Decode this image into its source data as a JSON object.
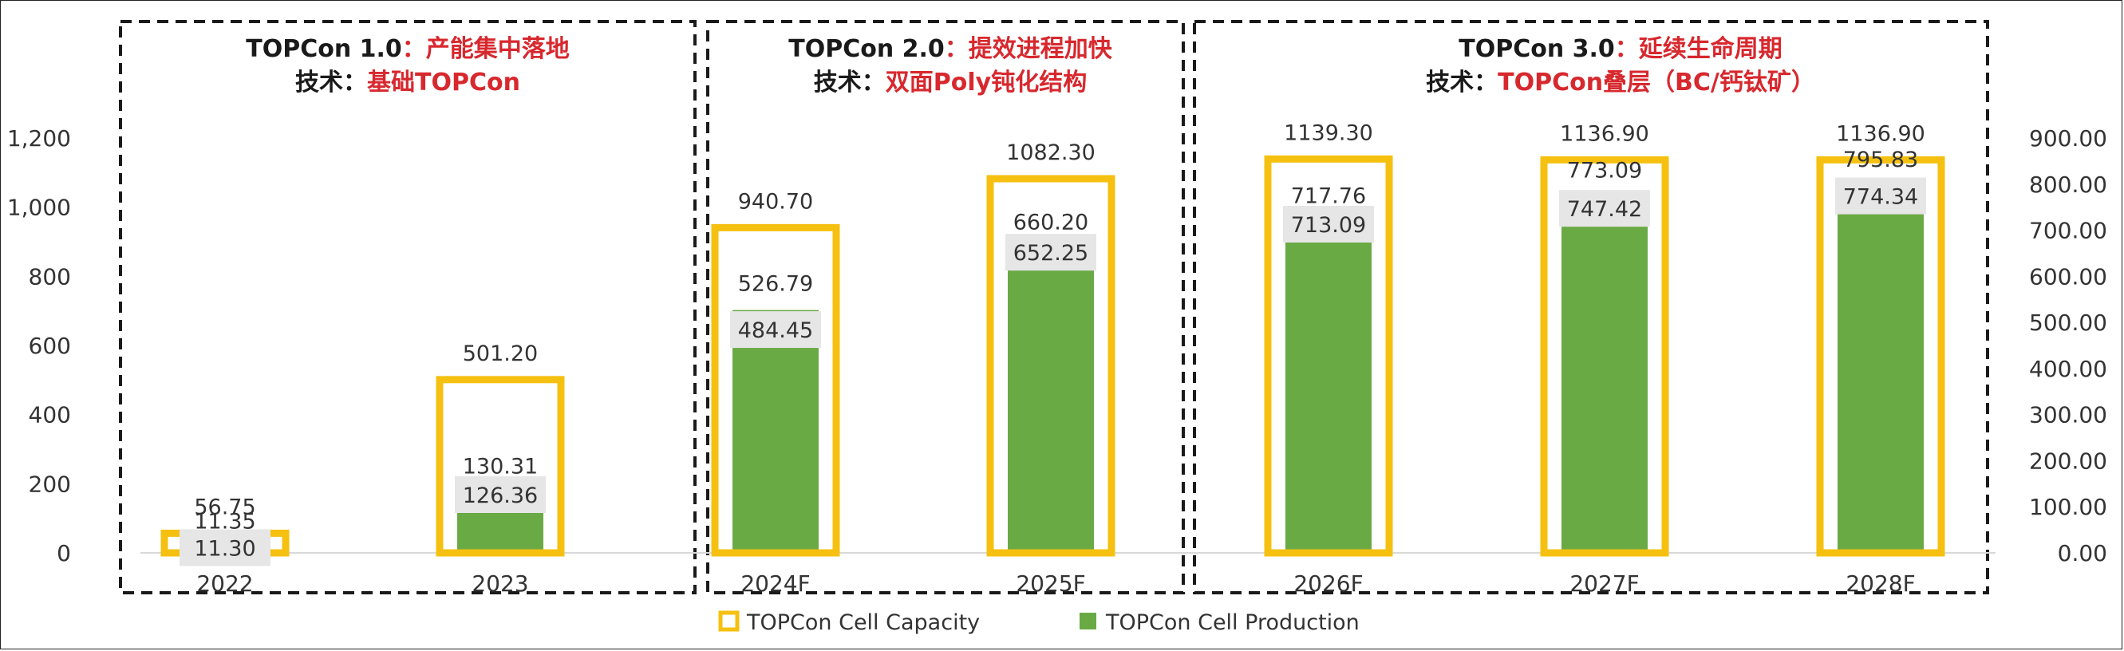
{
  "chart_data": {
    "type": "bar",
    "categories": [
      "2022",
      "2023",
      "2024F",
      "2025F",
      "2026F",
      "2027F",
      "2028F"
    ],
    "series": [
      {
        "name": "TOPCon Cell Capacity",
        "axis": "left",
        "color": "#f5c010",
        "style": "outline",
        "values": [
          56.75,
          501.2,
          940.7,
          1082.3,
          1139.3,
          1136.9,
          1136.9
        ],
        "labels": [
          "56.75",
          "501.20",
          "940.70",
          "1082.30",
          "1139.30",
          "1136.90",
          "1136.90"
        ]
      },
      {
        "name": "TOPCon Cell Production",
        "axis": "right",
        "color": "#6aaa45",
        "style": "filled",
        "values": [
          11.35,
          130.31,
          526.79,
          660.2,
          717.76,
          773.09,
          795.83
        ],
        "labels": [
          "11.35",
          "130.31",
          "526.79",
          "660.20",
          "717.76",
          "773.09",
          "795.83"
        ]
      },
      {
        "axis": "right",
        "style": "boxed-label",
        "values": [
          11.3,
          126.36,
          484.45,
          652.25,
          713.09,
          747.42,
          774.34
        ],
        "labels": [
          "11.30",
          "126.36",
          "484.45",
          "652.25",
          "713.09",
          "747.42",
          "774.34"
        ]
      }
    ],
    "y_left": {
      "ylim": [
        0,
        1200
      ],
      "ticks": [
        "0",
        "200",
        "400",
        "600",
        "800",
        "1,000",
        "1,200"
      ]
    },
    "y_right": {
      "ylim": [
        0,
        900
      ],
      "ticks": [
        "0.00",
        "100.00",
        "200.00",
        "300.00",
        "400.00",
        "500.00",
        "600.00",
        "700.00",
        "800.00",
        "900.00"
      ]
    },
    "legend_position": "bottom-center",
    "grid": false
  },
  "phases": [
    {
      "title_main": "TOPCon 1.0",
      "title_sep": "：",
      "title_sub": "产能集中落地",
      "tech_prefix": "技术：",
      "tech": "基础TOPCon"
    },
    {
      "title_main": "TOPCon 2.0",
      "title_sep": "：",
      "title_sub": "提效进程加快",
      "tech_prefix": "技术：",
      "tech": "双面Poly钝化结构"
    },
    {
      "title_main": "TOPCon 3.0",
      "title_sep": "：",
      "title_sub": "延续生命周期",
      "tech_prefix": "技术：",
      "tech": "TOPCon叠层（BC/钙钛矿）"
    }
  ],
  "legend": {
    "capacity": "TOPCon Cell Capacity",
    "production": "TOPCon Cell Production"
  },
  "colors": {
    "capacity": "#f5c010",
    "production": "#6aaa45",
    "label_box": "#e6e6e6",
    "accent_red": "#d7282e"
  }
}
